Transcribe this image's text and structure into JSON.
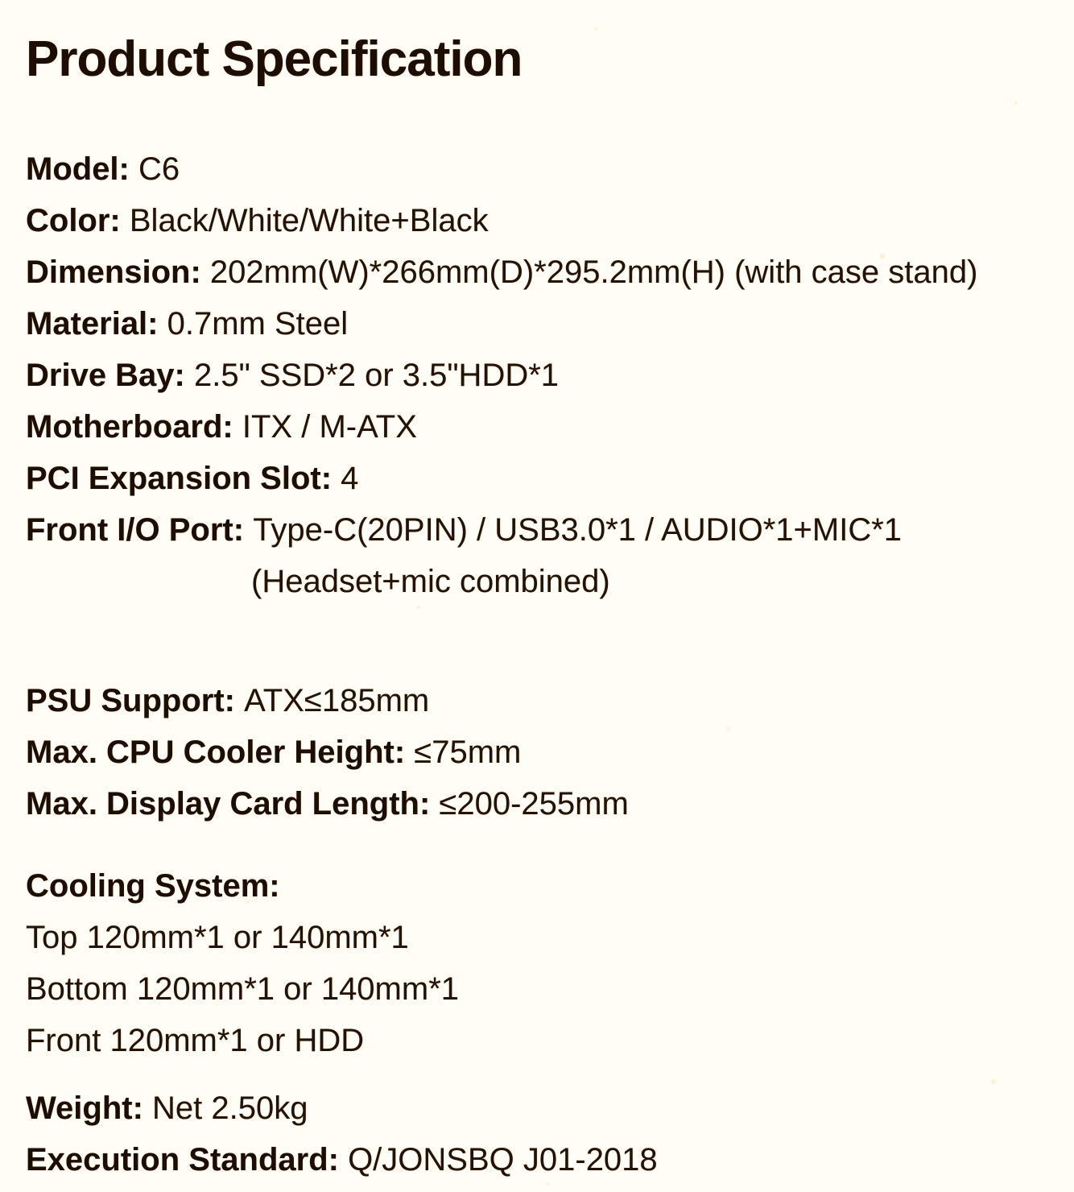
{
  "title": "Product Specification",
  "colors": {
    "ink": "#201104",
    "paper": "#fffdf6"
  },
  "groups": {
    "general": [
      {
        "label": "Model: ",
        "value": "C6"
      },
      {
        "label": "Color: ",
        "value": "Black/White/White+Black"
      },
      {
        "label": "Dimension: ",
        "value": "202mm(W)*266mm(D)*295.2mm(H) (with case stand)"
      },
      {
        "label": "Material: ",
        "value": "0.7mm Steel"
      },
      {
        "label": "Drive Bay: ",
        "value": "2.5\" SSD*2 or 3.5\"HDD*1"
      },
      {
        "label": "Motherboard: ",
        "value": "ITX / M-ATX"
      },
      {
        "label": "PCI Expansion Slot: ",
        "value": "4"
      },
      {
        "label": "Front I/O Port: ",
        "value": "Type-C(20PIN) / USB3.0*1 / AUDIO*1+MIC*1"
      },
      {
        "label": "",
        "value": "(Headset+mic combined)"
      }
    ],
    "clearance": [
      {
        "label": "PSU Support: ",
        "value": "ATX≤185mm"
      },
      {
        "label": "Max. CPU Cooler Height: ",
        "value": "≤75mm"
      },
      {
        "label": "Max. Display Card Length: ",
        "value": "≤200-255mm"
      }
    ],
    "cooling": {
      "heading": "Cooling System:",
      "rows": [
        "Top 120mm*1 or 140mm*1",
        "Bottom 120mm*1 or 140mm*1",
        "Front 120mm*1 or HDD"
      ]
    },
    "misc": [
      {
        "label": "Weight: ",
        "value": "Net 2.50kg"
      },
      {
        "label": "Execution Standard: ",
        "value": "Q/JONSBQ J01-2018"
      }
    ]
  }
}
